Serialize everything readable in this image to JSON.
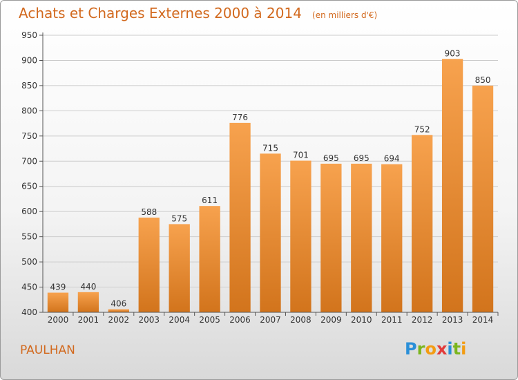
{
  "title": {
    "main": "Achats et Charges Externes 2000 à 2014",
    "unit": "(en milliers d'€)"
  },
  "commune": "PAULHAN",
  "logo": {
    "text": "Proxiti",
    "letters": [
      {
        "ch": "P",
        "color": "#2a8fd8"
      },
      {
        "ch": "r",
        "color": "#7ab51d"
      },
      {
        "ch": "o",
        "color": "#f39c12"
      },
      {
        "ch": "x",
        "color": "#e23a3a"
      },
      {
        "ch": "i",
        "color": "#2a8fd8"
      },
      {
        "ch": "t",
        "color": "#7ab51d"
      },
      {
        "ch": "i",
        "color": "#f39c12"
      }
    ]
  },
  "colors": {
    "title": "#d2691e",
    "bar_top": "#f7a24e",
    "bar_bottom": "#d2741c",
    "grid": "#cccccc",
    "axis": "#555555",
    "label": "#333333"
  },
  "chart_data": {
    "type": "bar",
    "categories": [
      "2000",
      "2001",
      "2002",
      "2003",
      "2004",
      "2005",
      "2006",
      "2007",
      "2008",
      "2009",
      "2010",
      "2011",
      "2012",
      "2013",
      "2014"
    ],
    "values": [
      439,
      440,
      406,
      588,
      575,
      611,
      776,
      715,
      701,
      695,
      695,
      694,
      752,
      903,
      850
    ],
    "ylim": [
      400,
      950
    ],
    "yticks": [
      400,
      450,
      500,
      550,
      600,
      650,
      700,
      750,
      800,
      850,
      900,
      950
    ],
    "grid": true,
    "title": "Achats et Charges Externes 2000 à 2014",
    "xlabel": "",
    "ylabel": ""
  }
}
